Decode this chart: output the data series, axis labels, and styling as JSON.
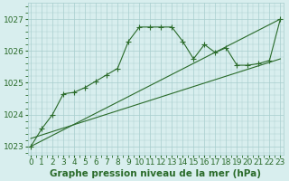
{
  "title": "Graphe pression niveau de la mer (hPa)",
  "hours": [
    0,
    1,
    2,
    3,
    4,
    5,
    6,
    7,
    8,
    9,
    10,
    11,
    12,
    13,
    14,
    15,
    16,
    17,
    18,
    19,
    20,
    21,
    22,
    23
  ],
  "main_series": [
    1023.0,
    1023.55,
    1024.0,
    1024.65,
    1024.7,
    1024.85,
    1025.05,
    1025.25,
    1025.45,
    1026.3,
    1026.75,
    1026.75,
    1026.75,
    1026.75,
    1026.3,
    1025.75,
    1026.2,
    1025.95,
    1026.1,
    1025.55,
    1025.55,
    1025.6,
    1025.7,
    1027.0
  ],
  "trend1_x": [
    0,
    23
  ],
  "trend1_y": [
    1023.0,
    1027.0
  ],
  "trend2_x": [
    0,
    23
  ],
  "trend2_y": [
    1023.25,
    1025.75
  ],
  "ylim": [
    1022.75,
    1027.5
  ],
  "yticks": [
    1023,
    1024,
    1025,
    1026,
    1027
  ],
  "xlim": [
    -0.3,
    23.3
  ],
  "bg_color": "#d8eeee",
  "grid_color": "#a8cece",
  "line_color": "#2a6b2a",
  "title_fontsize": 7.5,
  "tick_fontsize": 6.5,
  "linewidth": 0.8,
  "marker": "+",
  "markersize": 4.0
}
